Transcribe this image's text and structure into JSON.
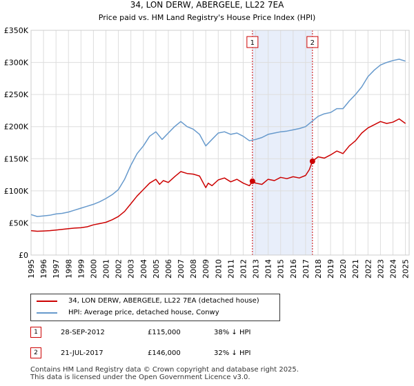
{
  "chart_data": {
    "type": "line",
    "title": "34, LON DERW, ABERGELE, LL22 7EA",
    "subtitle": "Price paid vs. HM Land Registry's House Price Index (HPI)",
    "xlabel": "",
    "ylabel": "",
    "xlim": [
      1995,
      2025.3
    ],
    "ylim": [
      0,
      350000
    ],
    "y_ticks": [
      0,
      50000,
      100000,
      150000,
      200000,
      250000,
      300000,
      350000
    ],
    "y_tick_labels": [
      "£0",
      "£50K",
      "£100K",
      "£150K",
      "£200K",
      "£250K",
      "£300K",
      "£350K"
    ],
    "x_ticks": [
      1995,
      1996,
      1997,
      1998,
      1999,
      2000,
      2001,
      2002,
      2003,
      2004,
      2005,
      2006,
      2007,
      2008,
      2009,
      2010,
      2011,
      2012,
      2013,
      2014,
      2015,
      2016,
      2017,
      2018,
      2019,
      2020,
      2021,
      2022,
      2023,
      2024,
      2025
    ],
    "x_tick_labels": [
      "1995",
      "1996",
      "1997",
      "1998",
      "1999",
      "2000",
      "2001",
      "2002",
      "2003",
      "2004",
      "2005",
      "2006",
      "2007",
      "2008",
      "2009",
      "2010",
      "2011",
      "2012",
      "2013",
      "2014",
      "2015",
      "2016",
      "2017",
      "2018",
      "2019",
      "2020",
      "2021",
      "2022",
      "2023",
      "2024",
      "2025"
    ],
    "grid": true,
    "shaded_region": [
      2012.74,
      2017.55
    ],
    "series": [
      {
        "name": "34, LON DERW, ABERGELE, LL22 7EA (detached house)",
        "color": "#cc0000",
        "x": [
          1995,
          1995.5,
          1996,
          1996.5,
          1997,
          1997.5,
          1998,
          1998.5,
          1999,
          1999.5,
          2000,
          2000.5,
          2001,
          2001.5,
          2002,
          2002.5,
          2003,
          2003.5,
          2004,
          2004.5,
          2005,
          2005.3,
          2005.6,
          2006,
          2006.5,
          2007,
          2007.5,
          2008,
          2008.5,
          2009,
          2009.2,
          2009.5,
          2010,
          2010.5,
          2011,
          2011.5,
          2012,
          2012.5,
          2012.74,
          2013,
          2013.5,
          2014,
          2014.5,
          2015,
          2015.5,
          2016,
          2016.5,
          2017,
          2017.3,
          2017.55,
          2018,
          2018.5,
          2019,
          2019.5,
          2020,
          2020.5,
          2021,
          2021.5,
          2022,
          2022.5,
          2023,
          2023.5,
          2024,
          2024.5,
          2025
        ],
        "values": [
          38000,
          37000,
          37500,
          38000,
          39000,
          40000,
          41000,
          42000,
          42500,
          44000,
          47000,
          49000,
          51000,
          55000,
          60000,
          68000,
          80000,
          92000,
          102000,
          112000,
          118000,
          110000,
          116000,
          113000,
          122000,
          130000,
          127000,
          126000,
          123000,
          105000,
          112000,
          108000,
          117000,
          120000,
          114000,
          118000,
          112000,
          108000,
          115000,
          112000,
          110000,
          118000,
          116000,
          121000,
          119000,
          122000,
          120000,
          124000,
          133000,
          146000,
          153000,
          151000,
          156000,
          162000,
          158000,
          170000,
          178000,
          190000,
          198000,
          203000,
          208000,
          205000,
          207000,
          212000,
          205000
        ]
      },
      {
        "name": "HPI: Average price, detached house, Conwy",
        "color": "#6699cc",
        "x": [
          1995,
          1995.5,
          1996,
          1996.5,
          1997,
          1997.5,
          1998,
          1998.5,
          1999,
          1999.5,
          2000,
          2000.5,
          2001,
          2001.5,
          2002,
          2002.5,
          2003,
          2003.5,
          2004,
          2004.5,
          2005,
          2005.5,
          2006,
          2006.5,
          2007,
          2007.5,
          2008,
          2008.5,
          2009,
          2009.5,
          2010,
          2010.5,
          2011,
          2011.5,
          2012,
          2012.5,
          2013,
          2013.5,
          2014,
          2014.5,
          2015,
          2015.5,
          2016,
          2016.5,
          2017,
          2017.5,
          2018,
          2018.5,
          2019,
          2019.5,
          2020,
          2020.5,
          2021,
          2021.5,
          2022,
          2022.5,
          2023,
          2023.5,
          2024,
          2024.5,
          2025
        ],
        "values": [
          63000,
          60000,
          61000,
          62000,
          64000,
          65000,
          67000,
          70000,
          73000,
          76000,
          79000,
          83000,
          88000,
          94000,
          102000,
          118000,
          140000,
          158000,
          170000,
          185000,
          192000,
          180000,
          190000,
          200000,
          208000,
          200000,
          196000,
          188000,
          170000,
          180000,
          190000,
          192000,
          188000,
          190000,
          185000,
          178000,
          180000,
          183000,
          188000,
          190000,
          192000,
          193000,
          195000,
          197000,
          200000,
          208000,
          216000,
          220000,
          222000,
          228000,
          228000,
          240000,
          250000,
          262000,
          278000,
          288000,
          296000,
          300000,
          303000,
          305000,
          302000
        ]
      }
    ],
    "sales": [
      {
        "label": "1",
        "x": 2012.74,
        "value": 115000
      },
      {
        "label": "2",
        "x": 2017.55,
        "value": 146000
      }
    ]
  },
  "legend": {
    "property_label": "34, LON DERW, ABERGELE, LL22 7EA (detached house)",
    "hpi_label": "HPI: Average price, detached house, Conwy"
  },
  "sales_table": [
    {
      "num": "1",
      "date": "28-SEP-2012",
      "price": "£115,000",
      "hpi_diff": "38% ↓ HPI"
    },
    {
      "num": "2",
      "date": "21-JUL-2017",
      "price": "£146,000",
      "hpi_diff": "32% ↓ HPI"
    }
  ],
  "footer": {
    "line1": "Contains HM Land Registry data © Crown copyright and database right 2025.",
    "line2": "This data is licensed under the Open Government Licence v3.0."
  },
  "colors": {
    "property": "#cc0000",
    "hpi": "#6699cc",
    "shade": "#e8eefa",
    "grid": "#dddddd"
  }
}
